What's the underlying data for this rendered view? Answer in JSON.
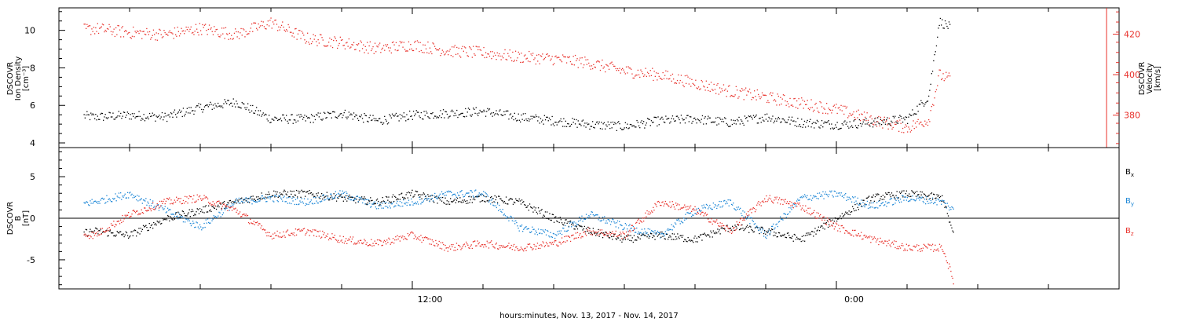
{
  "chart_data": [
    {
      "type": "scatter",
      "panel": "top",
      "xlabel": "hours:minutes, Nov. 13, 2017 - Nov. 14, 2017",
      "x_ticks": [
        "12:00",
        "0:00"
      ],
      "x_range_hours": [
        0,
        30
      ],
      "ylabel_left": [
        "DSCOVR",
        "Ion Density",
        "[cm⁻³]"
      ],
      "ylabel_right": [
        "DSCOVR",
        "Velocity",
        "[km/s]"
      ],
      "ylim_left": [
        3.75,
        11.2
      ],
      "ylim_right": [
        364,
        433
      ],
      "y_ticks_left": [
        4,
        6,
        8,
        10
      ],
      "y_ticks_right": [
        380,
        400,
        420
      ],
      "series": [
        {
          "color": "#000000",
          "axis": "left",
          "x": [
            0,
            1,
            2,
            3,
            4,
            5,
            6,
            7,
            8,
            9,
            10,
            11,
            12,
            13,
            14,
            15,
            16,
            17,
            18,
            19,
            20,
            21,
            22,
            23,
            24,
            24.6,
            24.9,
            25.2
          ],
          "y": [
            5.6,
            5.4,
            5.5,
            5.4,
            5.9,
            6.2,
            5.3,
            5.3,
            5.6,
            5.2,
            5.5,
            5.6,
            5.7,
            5.4,
            5.2,
            5.0,
            4.9,
            5.2,
            5.3,
            5.1,
            5.4,
            5.1,
            5.0,
            5.1,
            5.3,
            6.5,
            10.5,
            10.2
          ]
        },
        {
          "color": "#e8302a",
          "axis": "right",
          "x": [
            0,
            1,
            2,
            3,
            4,
            5,
            6,
            7,
            8,
            9,
            10,
            11,
            12,
            13,
            14,
            15,
            16,
            17,
            18,
            19,
            20,
            21,
            22,
            23,
            24,
            24.6,
            24.9,
            25.2
          ],
          "y": [
            421,
            423,
            421,
            420,
            423,
            420,
            426,
            418,
            416,
            413,
            415,
            412,
            411,
            409,
            408,
            406,
            402,
            400,
            396,
            392,
            389,
            386,
            383,
            378,
            374,
            378,
            400,
            398
          ]
        }
      ]
    },
    {
      "type": "scatter",
      "panel": "bottom",
      "xlabel": "hours:minutes, Nov. 13, 2017 - Nov. 14, 2017",
      "x_ticks": [
        "12:00",
        "0:00"
      ],
      "x_range_hours": [
        0,
        30
      ],
      "ylabel": [
        "DSCOVR",
        "B",
        "[nT]"
      ],
      "ylim": [
        -8.5,
        8.5
      ],
      "y_ticks": [
        -5,
        0,
        5
      ],
      "zero_line": true,
      "legend": [
        {
          "name": "B",
          "sub": "x",
          "color": "#000000"
        },
        {
          "name": "B",
          "sub": "y",
          "color": "#1a85d6"
        },
        {
          "name": "B",
          "sub": "z",
          "color": "#e8302a"
        }
      ],
      "series": [
        {
          "name": "Bx",
          "color": "#000000",
          "x": [
            0,
            1,
            2,
            3,
            4,
            5,
            6,
            7,
            8,
            9,
            10,
            11,
            12,
            13,
            14,
            15,
            16,
            17,
            18,
            19,
            20,
            21,
            22,
            23,
            24,
            25,
            25.3
          ],
          "y": [
            -2.2,
            -1.5,
            -2.0,
            0.0,
            1.0,
            2.0,
            3.0,
            3.0,
            2.5,
            2.0,
            3.0,
            2.0,
            2.5,
            2.0,
            0.0,
            -1.5,
            -2.5,
            -2.0,
            -2.5,
            -1.0,
            -1.5,
            -2.5,
            0.0,
            2.5,
            3.0,
            2.5,
            -2.0
          ]
        },
        {
          "name": "By",
          "color": "#1a85d6",
          "x": [
            0,
            1,
            2,
            3,
            4,
            5,
            6,
            7,
            8,
            9,
            10,
            11,
            12,
            13,
            14,
            15,
            16,
            17,
            18,
            19,
            20,
            21,
            22,
            23,
            24,
            25,
            25.3
          ],
          "y": [
            1.5,
            2.0,
            3.0,
            1.0,
            -1.0,
            2.0,
            2.5,
            2.0,
            3.0,
            1.5,
            2.0,
            3.0,
            3.0,
            -1.0,
            -2.0,
            0.5,
            -1.0,
            -2.0,
            1.0,
            2.0,
            -2.0,
            2.5,
            3.0,
            1.5,
            2.5,
            2.0,
            1.0
          ]
        },
        {
          "name": "Bz",
          "color": "#e8302a",
          "x": [
            0,
            1,
            2,
            3,
            4,
            5,
            6,
            7,
            8,
            9,
            10,
            11,
            12,
            13,
            14,
            15,
            16,
            17,
            18,
            19,
            20,
            21,
            22,
            23,
            24,
            25,
            25.3
          ],
          "y": [
            -1.5,
            -2.0,
            0.5,
            2.0,
            2.5,
            1.0,
            -2.0,
            -1.5,
            -2.5,
            -3.0,
            -2.0,
            -3.5,
            -3.0,
            -3.5,
            -3.0,
            -1.5,
            -2.0,
            2.0,
            1.0,
            -1.5,
            2.5,
            1.5,
            -1.0,
            -2.5,
            -3.5,
            -3.5,
            -7.5
          ]
        }
      ]
    }
  ]
}
